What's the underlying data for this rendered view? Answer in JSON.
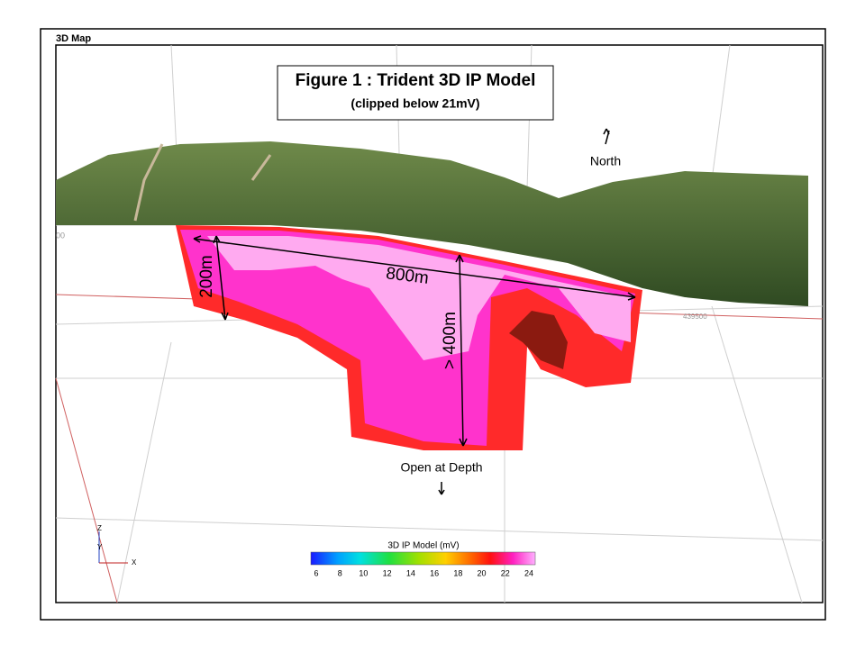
{
  "window": {
    "title": "3D Map"
  },
  "figure": {
    "title": "Figure 1 : Trident 3D IP Model",
    "subtitle": "(clipped below 21mV)"
  },
  "annotations": {
    "north": "North",
    "length": "800m",
    "width": "200m",
    "depth": "> 400m",
    "depth_note": "Open at Depth"
  },
  "grid_labels": [
    "00",
    "439500"
  ],
  "axes_indicator": {
    "z": "Z",
    "y": "Y",
    "x": "X"
  },
  "colorbar": {
    "title": "3D IP Model (mV)",
    "ticks": [
      "6",
      "8",
      "10",
      "12",
      "14",
      "16",
      "18",
      "20",
      "22",
      "24"
    ]
  }
}
